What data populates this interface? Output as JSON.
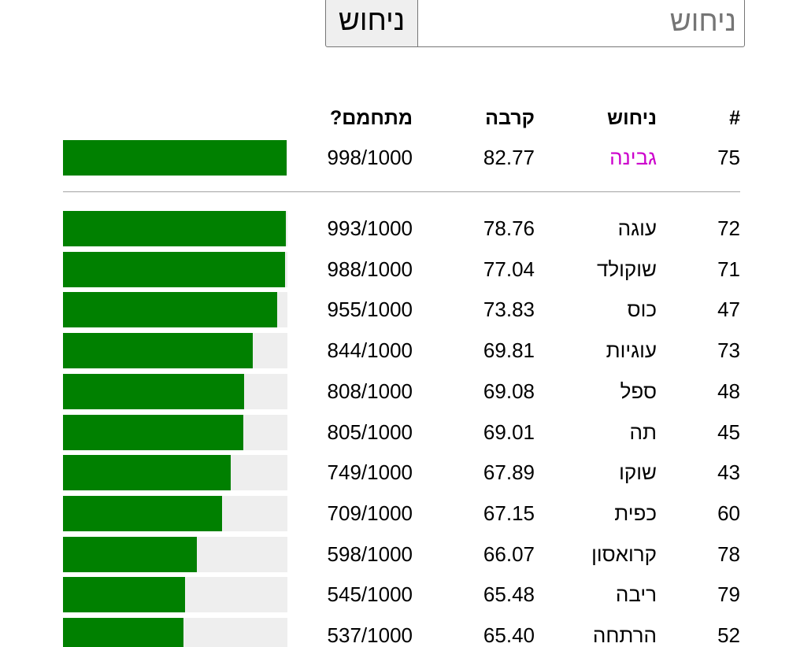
{
  "guess_form": {
    "input_placeholder": "ניחוש",
    "input_value": "",
    "button_label": "ניחוש"
  },
  "table": {
    "headers": {
      "number": "#",
      "guess": "ניחוש",
      "similarity": "קרבה",
      "progress": "מתחמם?"
    },
    "latest_guess": {
      "number": "75",
      "word": "גבינה",
      "similarity": "82.77",
      "progress": "998/1000",
      "progress_value": 998,
      "word_color": "#cc00cc"
    },
    "rows": [
      {
        "number": "72",
        "word": "עוגה",
        "similarity": "78.76",
        "progress": "993/1000",
        "progress_value": 993
      },
      {
        "number": "71",
        "word": "שוקולד",
        "similarity": "77.04",
        "progress": "988/1000",
        "progress_value": 988
      },
      {
        "number": "47",
        "word": "כוס",
        "similarity": "73.83",
        "progress": "955/1000",
        "progress_value": 955
      },
      {
        "number": "73",
        "word": "עוגיות",
        "similarity": "69.81",
        "progress": "844/1000",
        "progress_value": 844
      },
      {
        "number": "48",
        "word": "ספל",
        "similarity": "69.08",
        "progress": "808/1000",
        "progress_value": 808
      },
      {
        "number": "45",
        "word": "תה",
        "similarity": "69.01",
        "progress": "805/1000",
        "progress_value": 805
      },
      {
        "number": "43",
        "word": "שוקו",
        "similarity": "67.89",
        "progress": "749/1000",
        "progress_value": 749
      },
      {
        "number": "60",
        "word": "כפית",
        "similarity": "67.15",
        "progress": "709/1000",
        "progress_value": 709
      },
      {
        "number": "78",
        "word": "קרואסון",
        "similarity": "66.07",
        "progress": "598/1000",
        "progress_value": 598
      },
      {
        "number": "79",
        "word": "ריבה",
        "similarity": "65.48",
        "progress": "545/1000",
        "progress_value": 545
      },
      {
        "number": "52",
        "word": "הרתחה",
        "similarity": "65.40",
        "progress": "537/1000",
        "progress_value": 537
      }
    ]
  },
  "colors": {
    "progress_fill": "#008000",
    "progress_track": "#eeeeee",
    "latest_word": "#cc00cc"
  }
}
